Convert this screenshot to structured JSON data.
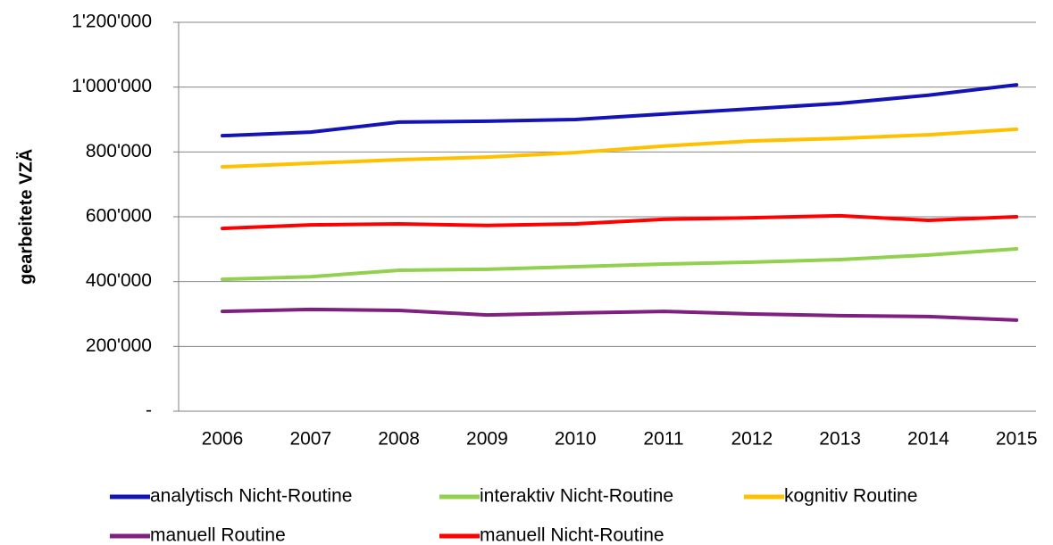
{
  "chart_data": {
    "type": "line",
    "ylabel": "gearbeitete VZÄ",
    "categories": [
      "2006",
      "2007",
      "2008",
      "2009",
      "2010",
      "2011",
      "2012",
      "2013",
      "2014",
      "2015"
    ],
    "series": [
      {
        "name": "analytisch Nicht-Routine",
        "color": "#1414b4",
        "values": [
          850000,
          861000,
          892000,
          895000,
          900000,
          917000,
          933000,
          950000,
          975000,
          1007000
        ]
      },
      {
        "name": "interaktiv Nicht-Routine",
        "color": "#92d050",
        "values": [
          407000,
          415000,
          435000,
          438000,
          446000,
          454000,
          460000,
          468000,
          482000,
          501000
        ]
      },
      {
        "name": "kognitiv Routine",
        "color": "#ffc000",
        "values": [
          754000,
          765000,
          776000,
          784000,
          798000,
          818000,
          834000,
          842000,
          853000,
          870000
        ]
      },
      {
        "name": "manuell Routine",
        "color": "#7f1f7f",
        "values": [
          308000,
          314000,
          311000,
          297000,
          303000,
          308000,
          300000,
          295000,
          292000,
          281000
        ]
      },
      {
        "name": "manuell Nicht-Routine",
        "color": "#ff0000",
        "values": [
          564000,
          575000,
          578000,
          573000,
          578000,
          592000,
          597000,
          603000,
          589000,
          600000
        ]
      }
    ],
    "ylim": [
      0,
      1200000
    ],
    "yticks": [
      {
        "value": 0,
        "label": "-"
      },
      {
        "value": 200000,
        "label": "200'000"
      },
      {
        "value": 400000,
        "label": "400'000"
      },
      {
        "value": 600000,
        "label": "600'000"
      },
      {
        "value": 800000,
        "label": "800'000"
      },
      {
        "value": 1000000,
        "label": "1'000'000"
      },
      {
        "value": 1200000,
        "label": "1'200'000"
      }
    ],
    "grid": true,
    "legend": "bottom"
  }
}
